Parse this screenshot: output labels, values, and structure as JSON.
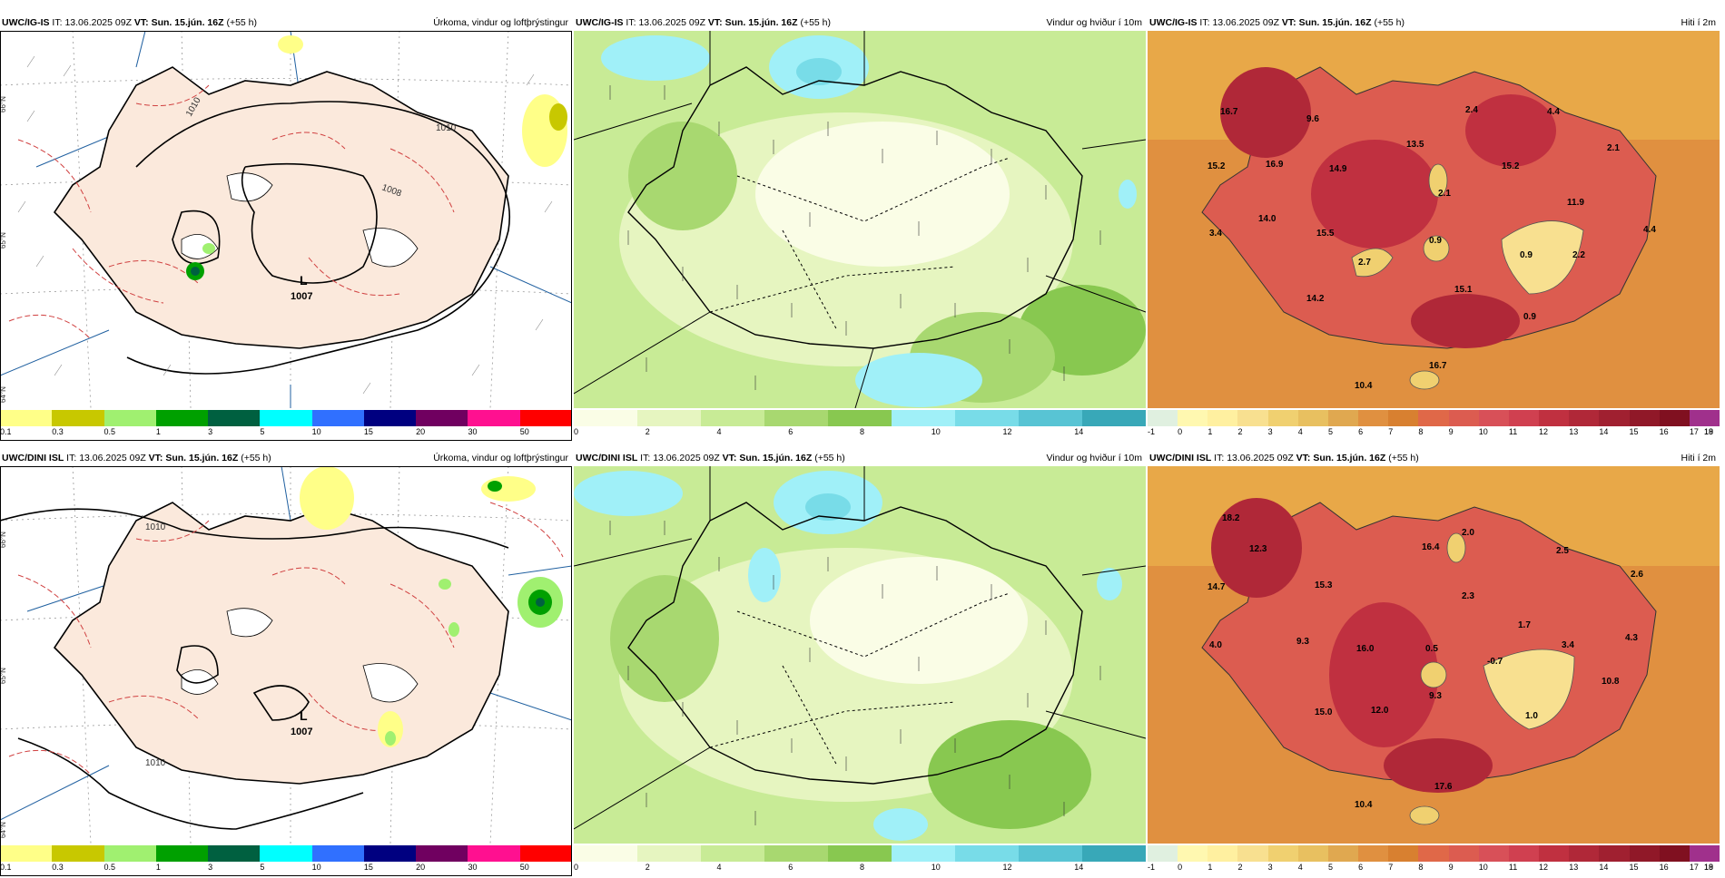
{
  "rows": [
    {
      "model": "UWC/IG-IS",
      "it_label": "IT:",
      "it": "13.06.2025 09Z",
      "vt_label": "VT:",
      "vt": "Sun. 15.jún. 16Z",
      "lead": "(+55 h)"
    },
    {
      "model": "UWC/DINI ISL",
      "it_label": "IT:",
      "it": "13.06.2025 09Z",
      "vt_label": "VT:",
      "vt": "Sun. 15.jún. 16Z",
      "lead": "(+55 h)"
    }
  ],
  "fields": [
    {
      "title": "Úrkoma, vindur og loftþrýstingur",
      "colors": [
        "#ffff88",
        "#c8c800",
        "#a0f070",
        "#00a000",
        "#006040",
        "#00ffff",
        "#3070ff",
        "#000080",
        "#700060",
        "#ff1090",
        "#ff0000"
      ],
      "ticks": [
        "0.1",
        "0.3",
        "0.5",
        "1",
        "3",
        "5",
        "10",
        "15",
        "20",
        "30",
        "50"
      ]
    },
    {
      "title": "Vindur og hviður í 10m",
      "colors": [
        "#fafde6",
        "#e6f5c0",
        "#c8eb96",
        "#a8d870",
        "#88c850",
        "#a0f0f8",
        "#78dce8",
        "#58c4d4",
        "#38a8b8"
      ],
      "ticks": [
        "0",
        "2",
        "4",
        "6",
        "8",
        "10",
        "12",
        "14"
      ]
    },
    {
      "title": "Hiti í 2m",
      "colors": [
        "#e0f0e0",
        "#fff8b0",
        "#fff0a0",
        "#f8e090",
        "#f0d070",
        "#e8c060",
        "#e0a850",
        "#e09040",
        "#d88030",
        "#e06848",
        "#dc5c50",
        "#d85058",
        "#d04050",
        "#c03040",
        "#b02838",
        "#a02030",
        "#901828",
        "#801020",
        "#a0308c"
      ],
      "ticks": [
        "-1",
        "0",
        "1",
        "2",
        "3",
        "4",
        "5",
        "6",
        "7",
        "8",
        "9",
        "10",
        "11",
        "12",
        "13",
        "14",
        "15",
        "16",
        "17",
        "18",
        "19"
      ]
    }
  ],
  "pressure_low": {
    "letter": "L",
    "value": "1007"
  },
  "isobars": [
    "1010",
    "1008",
    "1010"
  ],
  "lat_labels": [
    "66°N",
    "65°N",
    "64°N"
  ],
  "temps_top": [
    "16.7",
    "9.6",
    "2.4",
    "4.4",
    "15.2",
    "16.9",
    "14.9",
    "13.5",
    "2.1",
    "15.2",
    "2.1",
    "14.0",
    "3.4",
    "15.5",
    "2.7",
    "0.9",
    "0.9",
    "2.2",
    "11.9",
    "4.4",
    "14.2",
    "15.1",
    "0.9",
    "10.4",
    "16.7"
  ],
  "temps_bottom": [
    "18.2",
    "12.3",
    "16.4",
    "2.0",
    "2.5",
    "2.6",
    "14.7",
    "15.3",
    "2.3",
    "1.7",
    "4.0",
    "9.3",
    "16.0",
    "0.5",
    "-0.7",
    "3.4",
    "4.3",
    "10.8",
    "9.3",
    "15.0",
    "12.0",
    "1.0",
    "10.4",
    "17.6"
  ]
}
